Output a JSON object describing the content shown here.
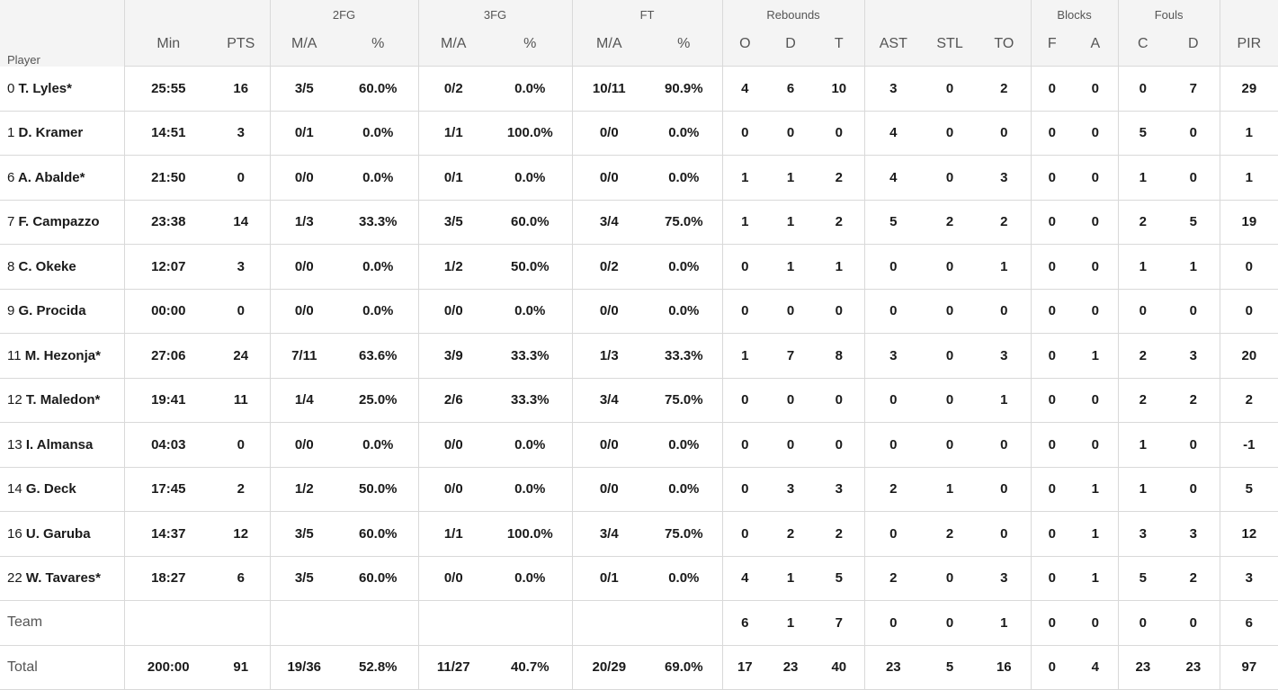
{
  "groups": {
    "fg2": "2FG",
    "fg3": "3FG",
    "ft": "FT",
    "reb": "Rebounds",
    "blk": "Blocks",
    "fouls": "Fouls"
  },
  "columns": [
    "Player",
    "Min",
    "PTS",
    "M/A",
    "%",
    "M/A",
    "%",
    "M/A",
    "%",
    "O",
    "D",
    "T",
    "AST",
    "STL",
    "TO",
    "F",
    "A",
    "C",
    "D",
    "PIR"
  ],
  "players": [
    {
      "num": "0",
      "name": "T. Lyles*",
      "stats": [
        "25:55",
        "16",
        "3/5",
        "60.0%",
        "0/2",
        "0.0%",
        "10/11",
        "90.9%",
        "4",
        "6",
        "10",
        "3",
        "0",
        "2",
        "0",
        "0",
        "0",
        "7",
        "29"
      ]
    },
    {
      "num": "1",
      "name": "D. Kramer",
      "stats": [
        "14:51",
        "3",
        "0/1",
        "0.0%",
        "1/1",
        "100.0%",
        "0/0",
        "0.0%",
        "0",
        "0",
        "0",
        "4",
        "0",
        "0",
        "0",
        "0",
        "5",
        "0",
        "1"
      ]
    },
    {
      "num": "6",
      "name": "A. Abalde*",
      "stats": [
        "21:50",
        "0",
        "0/0",
        "0.0%",
        "0/1",
        "0.0%",
        "0/0",
        "0.0%",
        "1",
        "1",
        "2",
        "4",
        "0",
        "3",
        "0",
        "0",
        "1",
        "0",
        "1"
      ]
    },
    {
      "num": "7",
      "name": "F. Campazzo",
      "stats": [
        "23:38",
        "14",
        "1/3",
        "33.3%",
        "3/5",
        "60.0%",
        "3/4",
        "75.0%",
        "1",
        "1",
        "2",
        "5",
        "2",
        "2",
        "0",
        "0",
        "2",
        "5",
        "19"
      ]
    },
    {
      "num": "8",
      "name": "C. Okeke",
      "stats": [
        "12:07",
        "3",
        "0/0",
        "0.0%",
        "1/2",
        "50.0%",
        "0/2",
        "0.0%",
        "0",
        "1",
        "1",
        "0",
        "0",
        "1",
        "0",
        "0",
        "1",
        "1",
        "0"
      ]
    },
    {
      "num": "9",
      "name": "G. Procida",
      "stats": [
        "00:00",
        "0",
        "0/0",
        "0.0%",
        "0/0",
        "0.0%",
        "0/0",
        "0.0%",
        "0",
        "0",
        "0",
        "0",
        "0",
        "0",
        "0",
        "0",
        "0",
        "0",
        "0"
      ]
    },
    {
      "num": "11",
      "name": "M. Hezonja*",
      "stats": [
        "27:06",
        "24",
        "7/11",
        "63.6%",
        "3/9",
        "33.3%",
        "1/3",
        "33.3%",
        "1",
        "7",
        "8",
        "3",
        "0",
        "3",
        "0",
        "1",
        "2",
        "3",
        "20"
      ]
    },
    {
      "num": "12",
      "name": "T. Maledon*",
      "stats": [
        "19:41",
        "11",
        "1/4",
        "25.0%",
        "2/6",
        "33.3%",
        "3/4",
        "75.0%",
        "0",
        "0",
        "0",
        "0",
        "0",
        "1",
        "0",
        "0",
        "2",
        "2",
        "2"
      ]
    },
    {
      "num": "13",
      "name": "I. Almansa",
      "stats": [
        "04:03",
        "0",
        "0/0",
        "0.0%",
        "0/0",
        "0.0%",
        "0/0",
        "0.0%",
        "0",
        "0",
        "0",
        "0",
        "0",
        "0",
        "0",
        "0",
        "1",
        "0",
        "-1"
      ]
    },
    {
      "num": "14",
      "name": "G. Deck",
      "stats": [
        "17:45",
        "2",
        "1/2",
        "50.0%",
        "0/0",
        "0.0%",
        "0/0",
        "0.0%",
        "0",
        "3",
        "3",
        "2",
        "1",
        "0",
        "0",
        "1",
        "1",
        "0",
        "5"
      ]
    },
    {
      "num": "16",
      "name": "U. Garuba",
      "stats": [
        "14:37",
        "12",
        "3/5",
        "60.0%",
        "1/1",
        "100.0%",
        "3/4",
        "75.0%",
        "0",
        "2",
        "2",
        "0",
        "2",
        "0",
        "0",
        "1",
        "3",
        "3",
        "12"
      ]
    },
    {
      "num": "22",
      "name": "W. Tavares*",
      "stats": [
        "18:27",
        "6",
        "3/5",
        "60.0%",
        "0/0",
        "0.0%",
        "0/1",
        "0.0%",
        "4",
        "1",
        "5",
        "2",
        "0",
        "3",
        "0",
        "1",
        "5",
        "2",
        "3"
      ]
    }
  ],
  "team": {
    "label": "Team",
    "stats": [
      "",
      "",
      "",
      "",
      "",
      "",
      "",
      "",
      "6",
      "1",
      "7",
      "0",
      "0",
      "1",
      "0",
      "0",
      "0",
      "0",
      "6"
    ]
  },
  "total": {
    "label": "Total",
    "stats": [
      "200:00",
      "91",
      "19/36",
      "52.8%",
      "11/27",
      "40.7%",
      "20/29",
      "69.0%",
      "17",
      "23",
      "40",
      "23",
      "5",
      "16",
      "0",
      "4",
      "23",
      "23",
      "97"
    ]
  }
}
